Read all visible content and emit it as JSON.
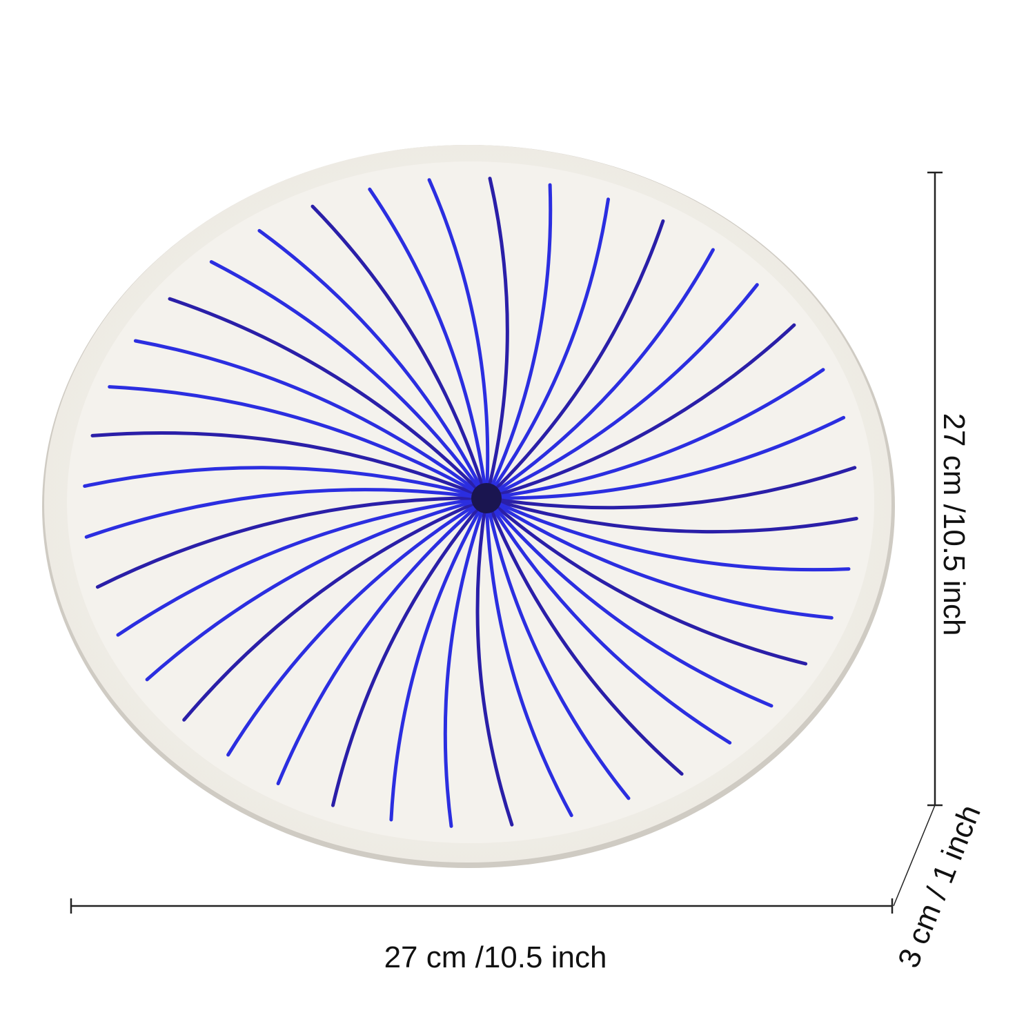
{
  "labels": {
    "width": "27 cm /10.5 inch",
    "height": "27 cm /10.5 inch",
    "depth": "3 cm / 1 inch"
  }
}
